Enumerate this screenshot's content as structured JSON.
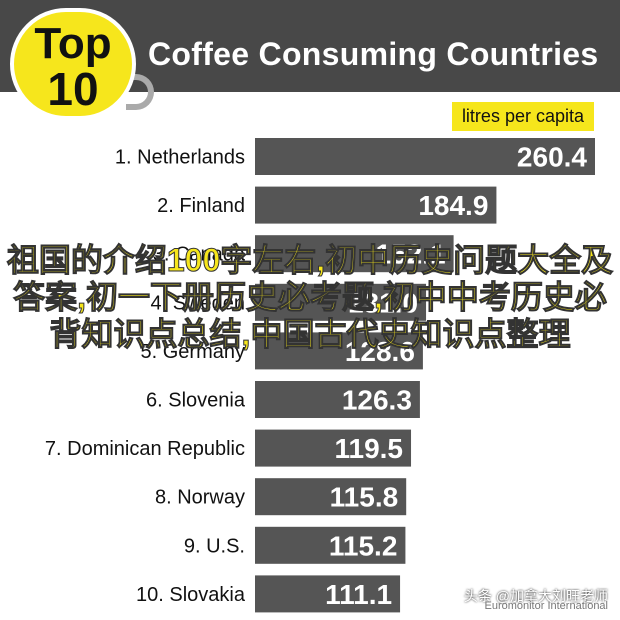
{
  "header": {
    "badge_top": "Top",
    "badge_number": "10",
    "title": "Coffee Consuming Countries"
  },
  "unit_label": "litres per capita",
  "chart_data": {
    "type": "bar",
    "orientation": "horizontal",
    "title": "Coffee Consuming Countries",
    "unit": "litres per capita",
    "categories": [
      "1. Netherlands",
      "2. Finland",
      "3. Canada",
      "4. Sweden",
      "5. Germany",
      "6. Slovenia",
      "7. Dominican Republic",
      "8. Norway",
      "9. U.S.",
      "10. Slovakia"
    ],
    "values": [
      260.4,
      184.9,
      152.1,
      131.0,
      128.6,
      126.3,
      119.5,
      115.8,
      115.2,
      111.1
    ],
    "value_labels": [
      "260.4",
      "184.9",
      "152.1",
      "131.0",
      "128.6",
      "126.3",
      "119.5",
      "115.8",
      "115.2",
      "111.1"
    ],
    "xlim": [
      0,
      270
    ],
    "grid": false,
    "legend": "none",
    "colors": {
      "bar": "#555555",
      "accent": "#f6e61c",
      "header": "#484848"
    }
  },
  "source": "Euromonitor International",
  "watermark": "头条 @加拿大刘旺老师",
  "overlay_text": "祖国的介绍100字左右,初中历史问题大全及答案,初一下册历史必考题,初中中考历史必背知识点总结,中国古代史知识点整理"
}
